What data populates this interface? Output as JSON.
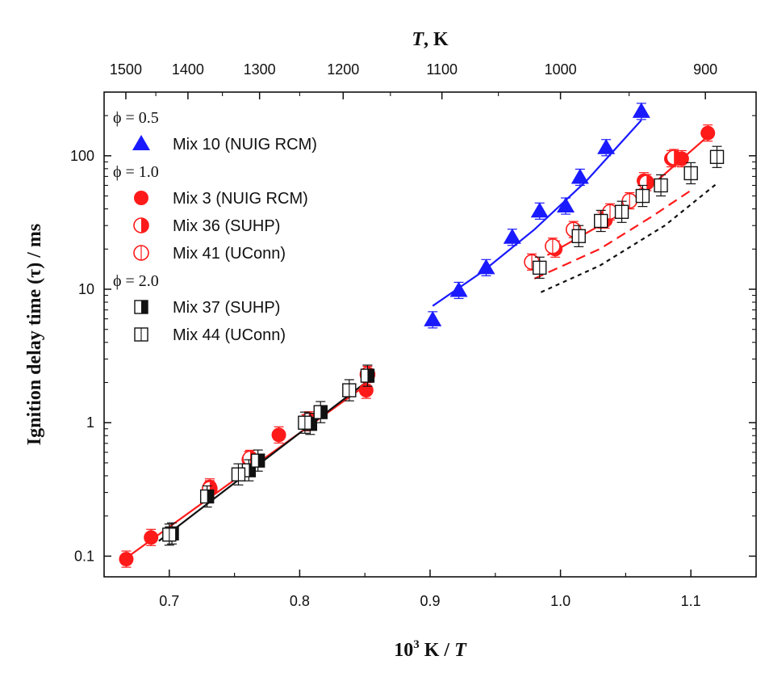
{
  "chart_data": {
    "type": "scatter",
    "title": "",
    "xlabel": {
      "pre": "10",
      "sup": "3",
      "post": " K / ",
      "italic": "T"
    },
    "ylabel": "Ignition delay time (τ) / ms",
    "top_xlabel": {
      "italic": "T",
      "post": ", K"
    },
    "xlim": [
      0.65,
      1.15
    ],
    "ylim": [
      0.07,
      300
    ],
    "yscale": "log",
    "x_ticks": [
      "0.7",
      "0.8",
      "0.9",
      "1.0",
      "1.1"
    ],
    "y_ticks": [
      {
        "value": 0.1,
        "label": "0.1"
      },
      {
        "value": 1,
        "label": "1"
      },
      {
        "value": 10,
        "label": "10"
      },
      {
        "value": 100,
        "label": "100"
      }
    ],
    "top_ticks": [
      {
        "T": 1500,
        "label": "1500"
      },
      {
        "T": 1400,
        "label": "1400"
      },
      {
        "T": 1300,
        "label": "1300"
      },
      {
        "T": 1200,
        "label": "1200"
      },
      {
        "T": 1100,
        "label": "1100"
      },
      {
        "T": 1000,
        "label": "1000"
      },
      {
        "T": 900,
        "label": "900"
      }
    ],
    "grid": false,
    "legend_position": "top-left",
    "legend_groups": [
      {
        "label": "ϕ = 0.5",
        "entries": [
          {
            "series": "mix10",
            "label": "Mix 10 (NUIG RCM)"
          }
        ]
      },
      {
        "label": "ϕ = 1.0",
        "entries": [
          {
            "series": "mix3",
            "label": "Mix 3 (NUIG RCM)"
          },
          {
            "series": "mix36",
            "label": "Mix 36 (SUHP)"
          },
          {
            "series": "mix41",
            "label": "Mix 41 (UConn)"
          }
        ]
      },
      {
        "label": "ϕ = 2.0",
        "entries": [
          {
            "series": "mix37",
            "label": "Mix 37 (SUHP)"
          },
          {
            "series": "mix44",
            "label": "Mix 44 (UConn)"
          }
        ]
      }
    ],
    "series": [
      {
        "id": "mix10",
        "name": "Mix 10 (NUIG RCM)",
        "marker": "triangle",
        "color": "#1a1aff",
        "err_frac": 0.15,
        "x": [
          0.902,
          0.922,
          0.943,
          0.963,
          0.984,
          1.004,
          1.015,
          1.035,
          1.062
        ],
        "y": [
          5.9,
          9.8,
          14.5,
          24.5,
          38.5,
          42.0,
          69.0,
          115.0,
          215.0
        ]
      },
      {
        "id": "mix3",
        "name": "Mix 3 (NUIG RCM)",
        "marker": "circle-filled",
        "color": "#ff1a1a",
        "err_frac": 0.15,
        "x": [
          0.667,
          0.686,
          0.731,
          0.761,
          0.784,
          0.805,
          0.851,
          0.996,
          1.032,
          1.064,
          1.085,
          1.093,
          1.113
        ],
        "y": [
          0.095,
          0.138,
          0.33,
          0.53,
          0.81,
          1.0,
          1.75,
          20.0,
          33.0,
          65.0,
          95.0,
          95.0,
          148.0
        ]
      },
      {
        "id": "mix36",
        "name": "Mix 36 (SUHP)",
        "marker": "circle-half",
        "color": "#ff1a1a",
        "err_frac": 0.15,
        "x": [
          0.731,
          0.762,
          0.807,
          0.852,
          1.034,
          1.066,
          1.087
        ],
        "y": [
          0.32,
          0.54,
          1.05,
          2.3,
          33.0,
          63.0,
          97.0
        ]
      },
      {
        "id": "mix41",
        "name": "Mix 41 (UConn)",
        "marker": "circle-open",
        "color": "#ff1a1a",
        "err_frac": 0.15,
        "x": [
          0.978,
          0.994,
          1.01,
          1.038,
          1.053
        ],
        "y": [
          16.0,
          21.0,
          28.0,
          38.0,
          46.0
        ]
      },
      {
        "id": "mix37",
        "name": "Mix 37 (SUHP)",
        "marker": "square-half",
        "color": "#111111",
        "err_frac": 0.2,
        "x": [
          0.702,
          0.729,
          0.761,
          0.768,
          0.808,
          0.816,
          0.852
        ],
        "y": [
          0.148,
          0.28,
          0.44,
          0.52,
          0.98,
          1.2,
          2.25
        ]
      },
      {
        "id": "mix44",
        "name": "Mix 44 (UConn)",
        "marker": "square-open",
        "color": "#111111",
        "err_frac": 0.2,
        "x": [
          0.7,
          0.753,
          0.804,
          0.838,
          0.984,
          1.014,
          1.031,
          1.047,
          1.063,
          1.077,
          1.1,
          1.12
        ],
        "y": [
          0.145,
          0.41,
          1.0,
          1.75,
          14.5,
          25.0,
          32.5,
          38.0,
          50.0,
          60.0,
          74.0,
          98.0
        ]
      }
    ],
    "fits": [
      {
        "id": "fit-blue",
        "color": "#1a1aff",
        "dash": "",
        "x": [
          0.902,
          0.94,
          0.98,
          1.02,
          1.062
        ],
        "y": [
          7.5,
          13.5,
          28.0,
          65.0,
          185.0
        ]
      },
      {
        "id": "fit-red-low",
        "color": "#ff1a1a",
        "dash": "",
        "x": [
          0.667,
          0.852
        ],
        "y": [
          0.097,
          1.95
        ]
      },
      {
        "id": "fit-black-low",
        "color": "#111111",
        "dash": "",
        "x": [
          0.692,
          0.852
        ],
        "y": [
          0.13,
          2.05
        ]
      },
      {
        "id": "fit-red-high",
        "color": "#ff1a1a",
        "dash": "",
        "x": [
          0.99,
          1.03,
          1.07,
          1.113
        ],
        "y": [
          18.0,
          30.0,
          60.0,
          140.0
        ]
      },
      {
        "id": "fit-red-dash",
        "color": "#ff1a1a",
        "dash": "12,7",
        "x": [
          0.98,
          1.03,
          1.07,
          1.1
        ],
        "y": [
          12.0,
          20.0,
          35.0,
          55.0
        ]
      },
      {
        "id": "fit-black-dash",
        "color": "#111111",
        "dash": "5,5",
        "x": [
          0.985,
          1.03,
          1.08,
          1.12
        ],
        "y": [
          9.5,
          15.0,
          30.0,
          62.0
        ]
      }
    ]
  }
}
